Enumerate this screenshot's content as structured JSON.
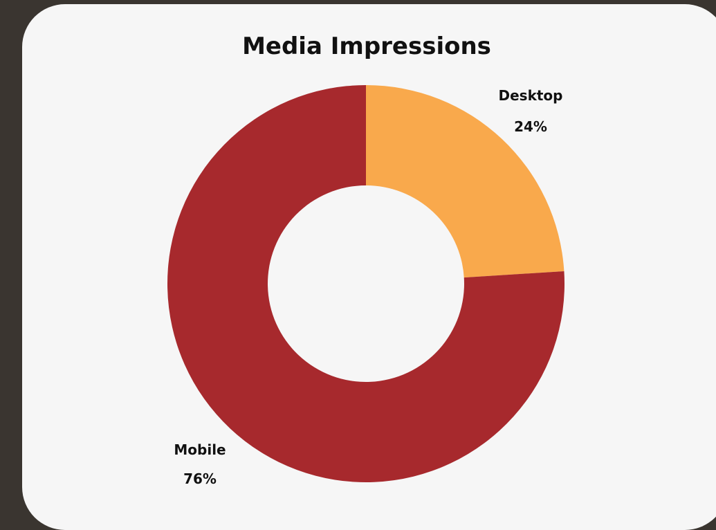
{
  "chart_data": {
    "type": "pie",
    "variant": "donut",
    "title": "Media Impressions",
    "categories": [
      "Desktop",
      "Mobile"
    ],
    "values": [
      24,
      76
    ],
    "value_labels": [
      "24%",
      "76%"
    ],
    "colors": [
      "#f9a94c",
      "#a7292d"
    ],
    "start_angle_deg": 0,
    "direction": "clockwise"
  }
}
